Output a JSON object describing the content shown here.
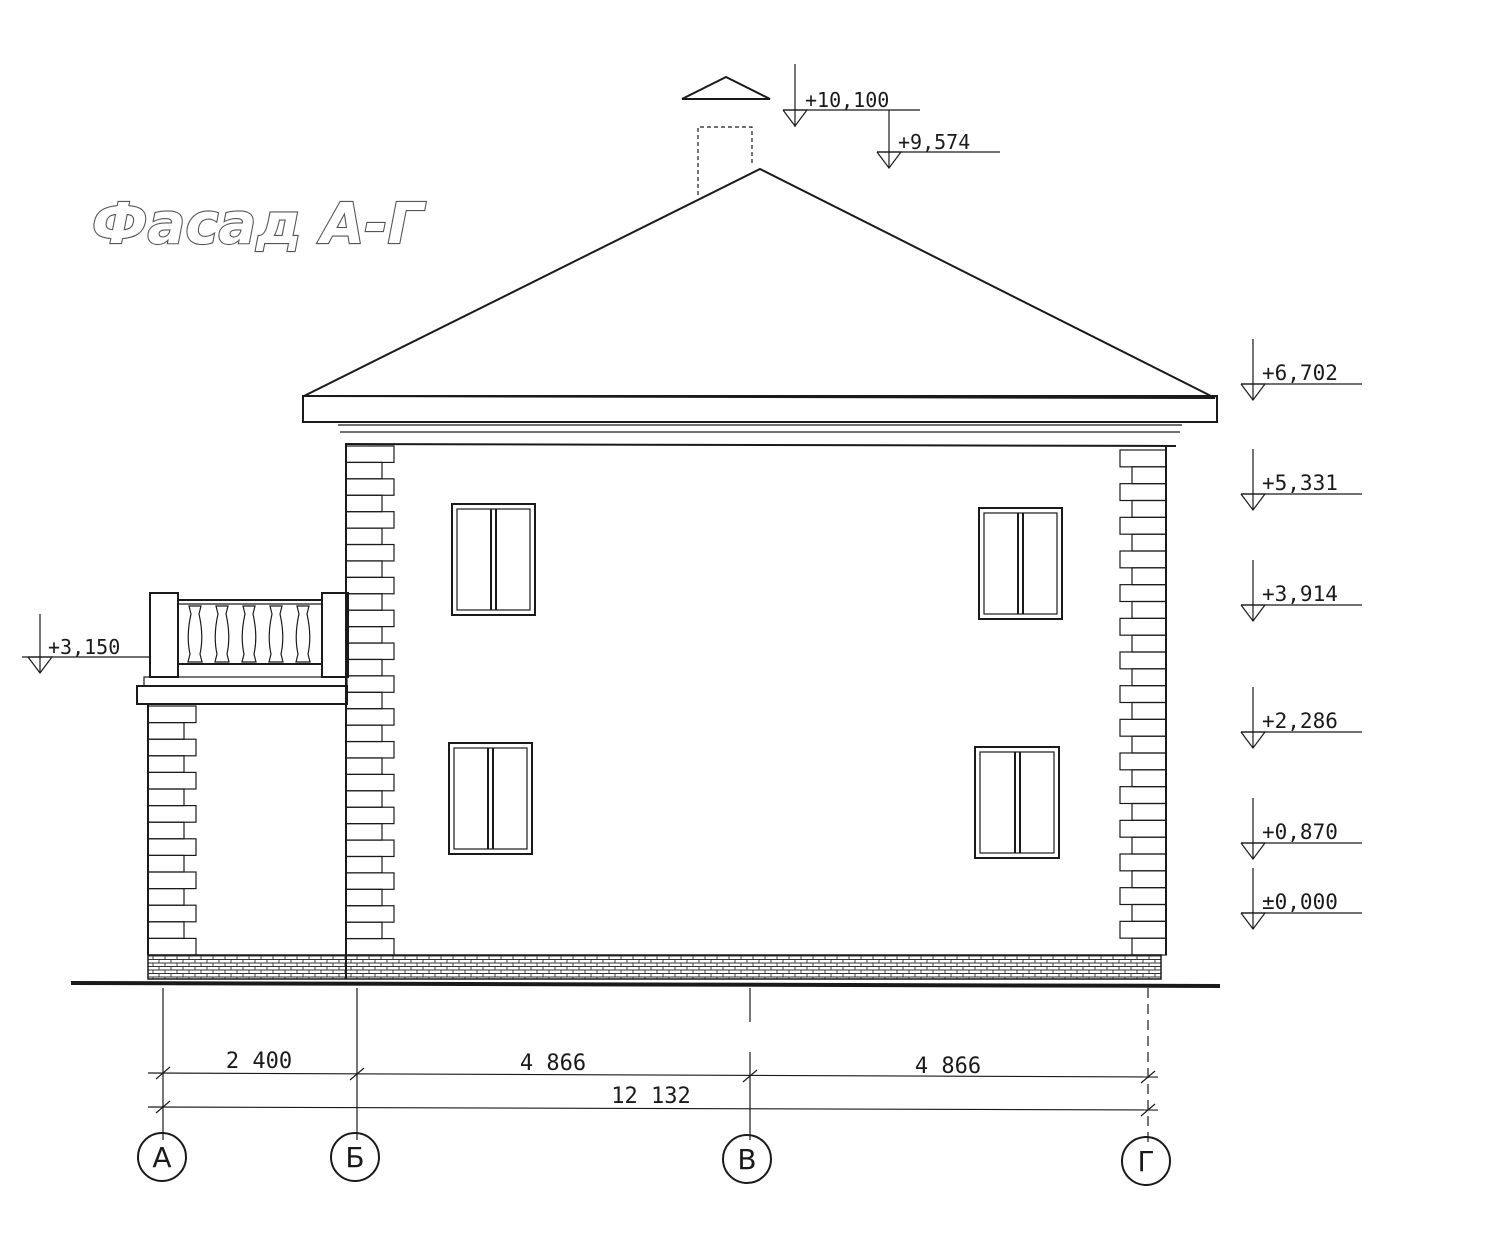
{
  "title": "Фасад А-Г",
  "levels": {
    "chimney_top": "+10,100",
    "ridge": "+9,574",
    "eave": "+6,702",
    "top_floor2_window": "+5,331",
    "bottom_floor2_window": "+3,914",
    "balcony": "+3,150",
    "top_floor1_window": "+2,286",
    "bottom_floor1_window": "+0,870",
    "zero": "±0,000"
  },
  "dimensions": {
    "a_b": "2 400",
    "b_v": "4 866",
    "v_g": "4 866",
    "total": "12 132"
  },
  "axes": [
    "А",
    "Б",
    "В",
    "Г"
  ],
  "colors": {
    "line": "#1a1a1a",
    "paper": "#ffffff"
  }
}
